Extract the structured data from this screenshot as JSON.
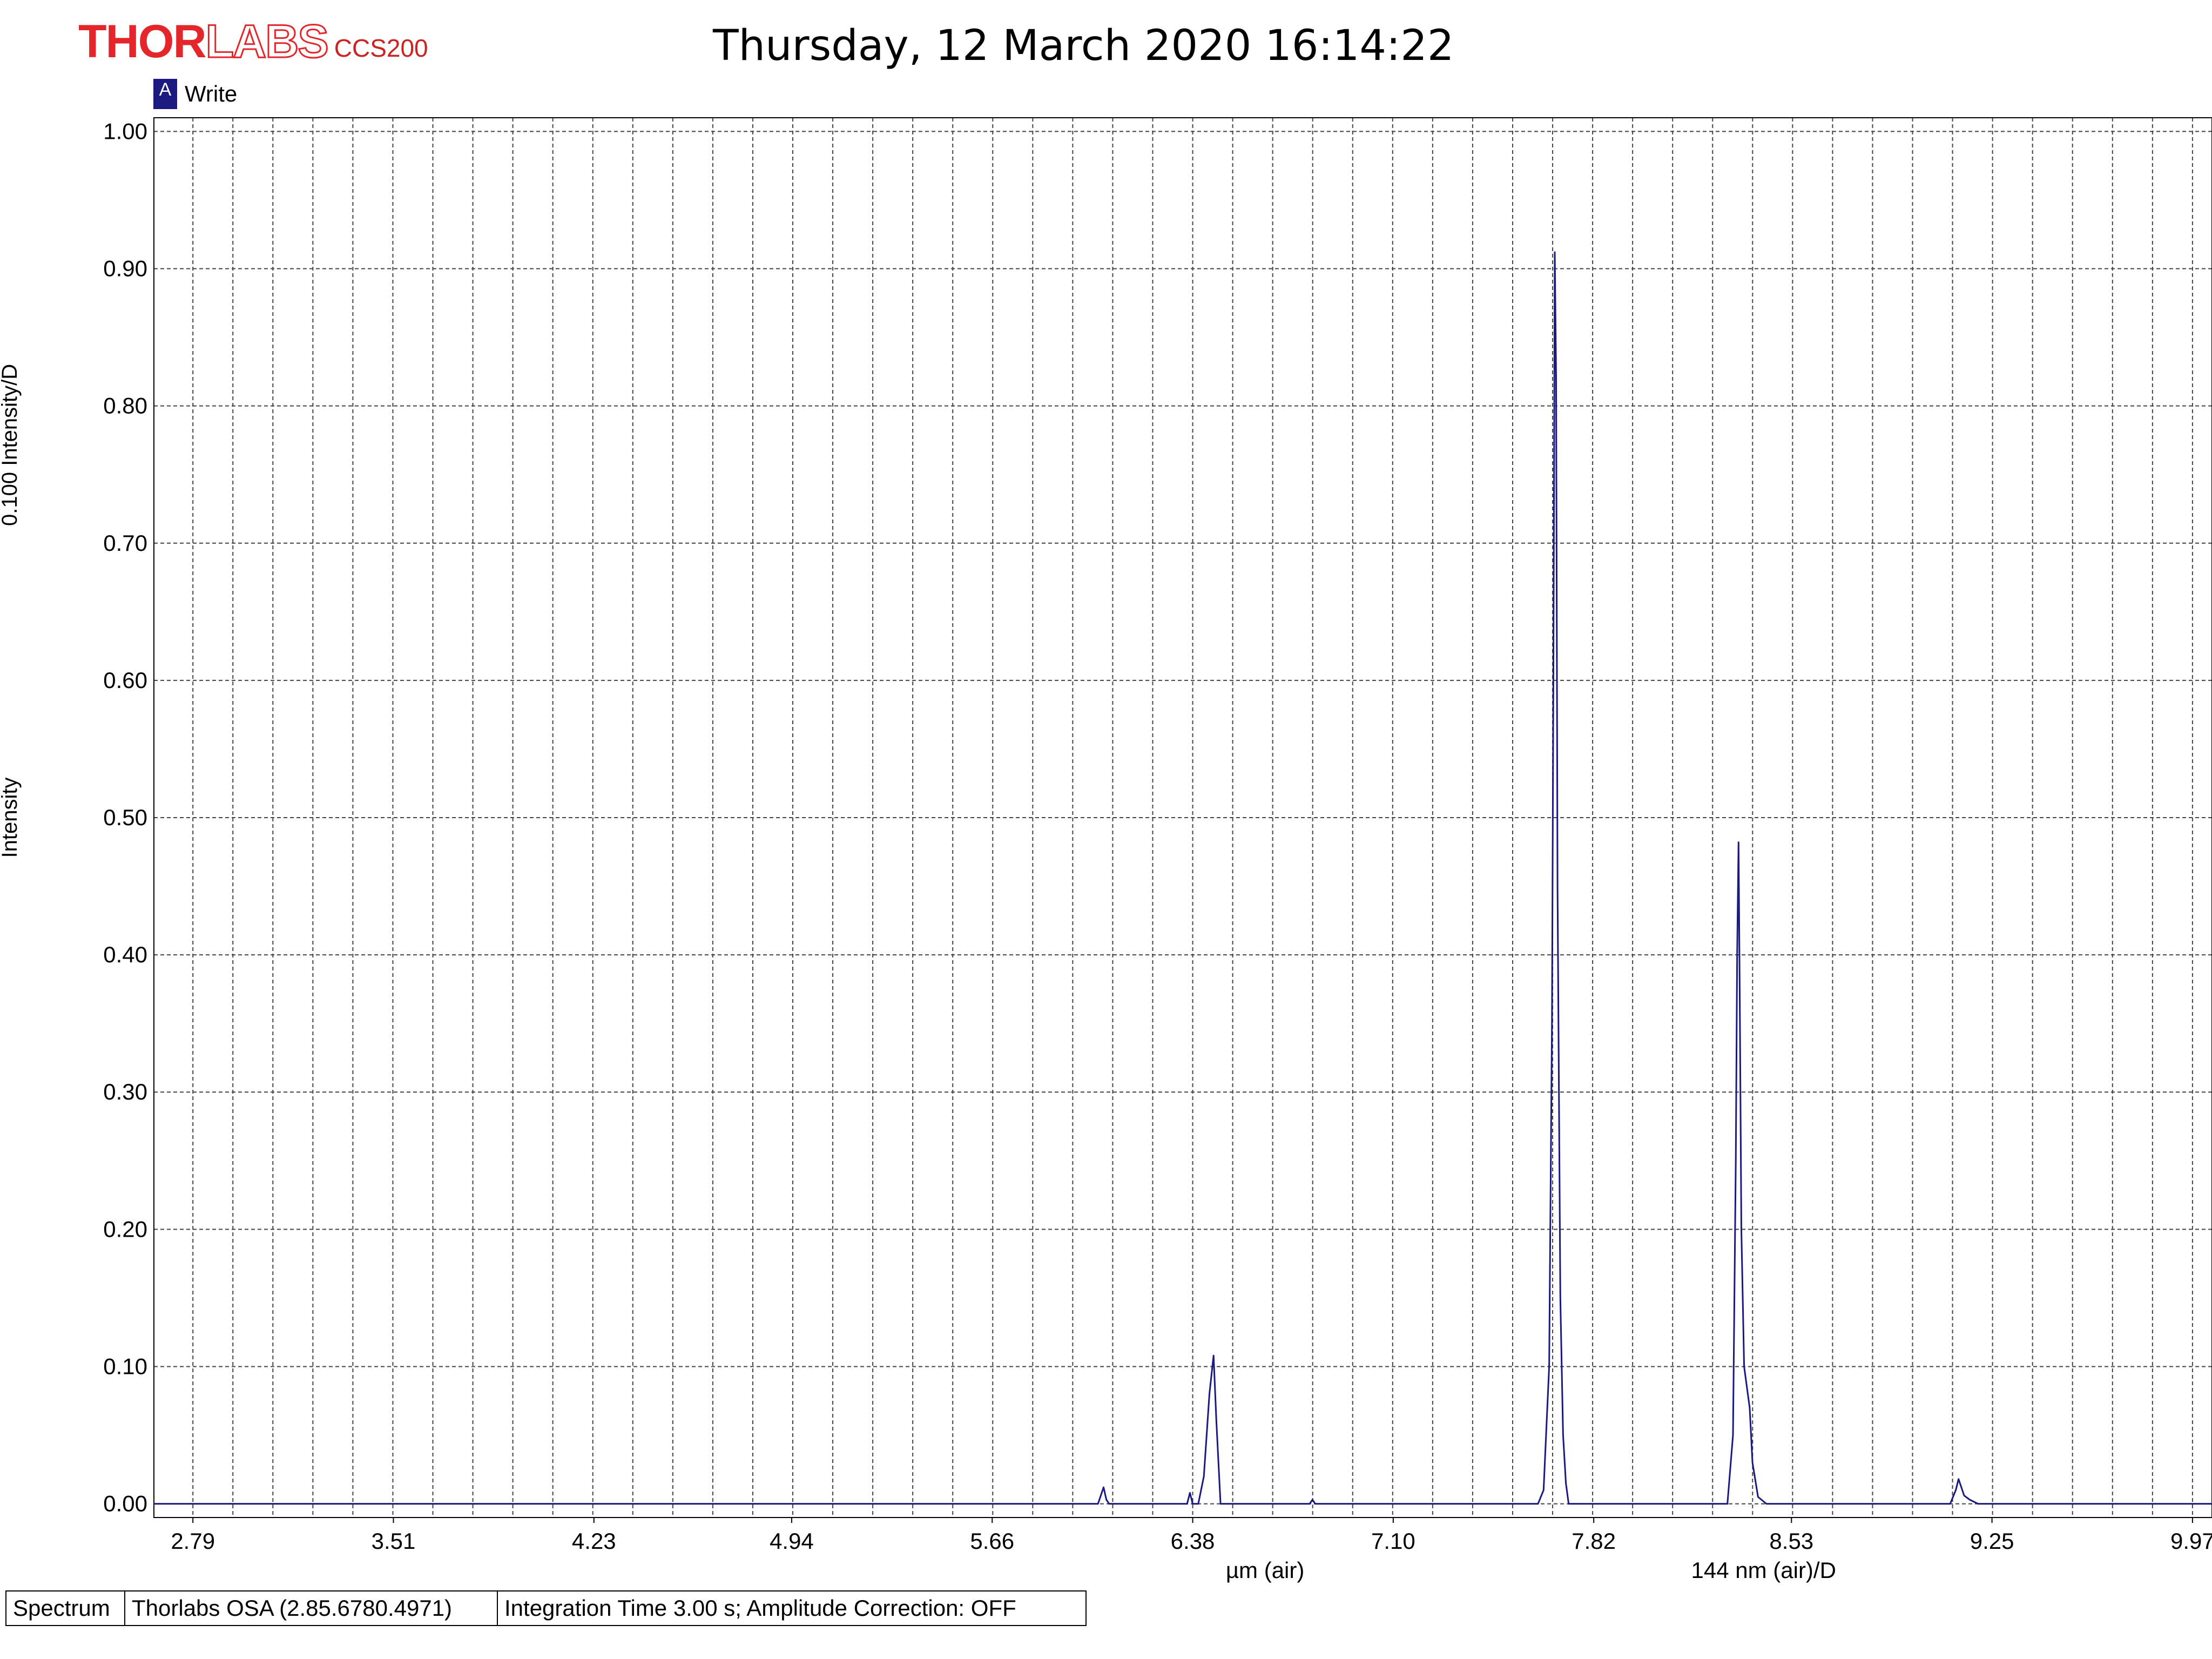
{
  "header": {
    "brand_thor": "THOR",
    "brand_labs": "LABS",
    "brand_model": "CCS200",
    "title": "Thursday, 12 March 2020 16:14:22"
  },
  "legend": {
    "marker": "A",
    "label": "Write"
  },
  "status_bar": {
    "mode": "Spectrum",
    "software": "Thorlabs OSA (2.85.6780.4971)",
    "settings": "Integration Time 3.00 s; Amplitude Correction: OFF"
  },
  "colors": {
    "trace": "#1a1a80",
    "brand": "#e4262b",
    "grid": "#444444"
  },
  "chart_data": {
    "type": "line",
    "title": "Thursday, 12 March 2020 16:14:22",
    "xlabel": "µm (air)",
    "xlabel_secondary": "144 nm (air)/D",
    "ylabel": "Intensity",
    "ylabel_secondary": "0.100 Intensity/D",
    "xlim": [
      2.65,
      10.04
    ],
    "ylim": [
      -0.01,
      1.01
    ],
    "grid": true,
    "legend_position": "top-left",
    "x_ticks": [
      "2.79",
      "3.51",
      "4.23",
      "4.94",
      "5.66",
      "6.38",
      "7.10",
      "7.82",
      "8.53",
      "9.25",
      "9.97"
    ],
    "y_ticks": [
      "0.00",
      "0.10",
      "0.20",
      "0.30",
      "0.40",
      "0.50",
      "0.60",
      "0.70",
      "0.80",
      "0.90",
      "1.00"
    ],
    "series": [
      {
        "name": "Write",
        "x": [
          2.65,
          6.04,
          6.06,
          6.07,
          6.08,
          6.1,
          6.36,
          6.37,
          6.38,
          6.4,
          6.42,
          6.44,
          6.455,
          6.465,
          6.48,
          6.5,
          6.8,
          6.81,
          6.82,
          7.62,
          7.64,
          7.66,
          7.67,
          7.675,
          7.68,
          7.685,
          7.69,
          7.7,
          7.71,
          7.72,
          7.73,
          7.75,
          8.3,
          8.32,
          8.33,
          8.335,
          8.34,
          8.345,
          8.35,
          8.36,
          8.38,
          8.39,
          8.41,
          8.44,
          9.1,
          9.12,
          9.13,
          9.15,
          9.17,
          9.2,
          10.04
        ],
        "y": [
          0.0,
          0.0,
          0.012,
          0.003,
          0.0,
          0.0,
          0.0,
          0.008,
          0.0,
          0.0,
          0.02,
          0.08,
          0.108,
          0.06,
          0.0,
          0.0,
          0.0,
          0.003,
          0.0,
          0.0,
          0.01,
          0.1,
          0.35,
          0.6,
          0.912,
          0.82,
          0.45,
          0.15,
          0.05,
          0.015,
          0.0,
          0.0,
          0.0,
          0.05,
          0.25,
          0.4,
          0.482,
          0.35,
          0.2,
          0.1,
          0.07,
          0.03,
          0.005,
          0.0,
          0.0,
          0.01,
          0.018,
          0.006,
          0.003,
          0.0,
          0.0
        ]
      }
    ]
  }
}
